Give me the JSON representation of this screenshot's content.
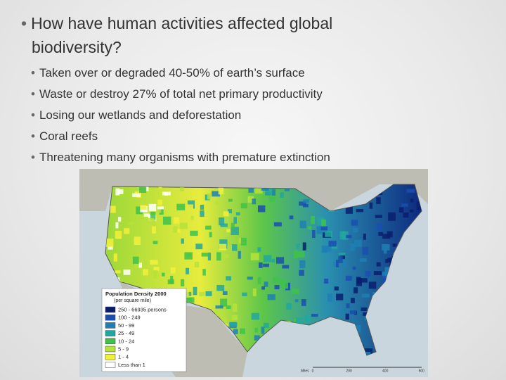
{
  "slide": {
    "title": "How have human activities affected global biodiversity?",
    "bullets": [
      "Taken over or degraded 40-50% of earth’s surface",
      "Waste or destroy 27% of total net primary productivity",
      "Losing our wetlands and deforestation",
      "Coral reefs",
      "Threatening many organisms with premature extinction"
    ]
  },
  "map": {
    "legend": {
      "title": "Population Density 2000",
      "subtitle": "(per square mile)",
      "items": [
        {
          "label": "250 - 66935 persons",
          "color": "#0a1e6e"
        },
        {
          "label": "100 - 249",
          "color": "#1a4fb0"
        },
        {
          "label": "50 - 99",
          "color": "#1f7fb5"
        },
        {
          "label": "25 - 49",
          "color": "#22a7a0"
        },
        {
          "label": "10 - 24",
          "color": "#3fc24a"
        },
        {
          "label": "5 - 9",
          "color": "#b7e23a"
        },
        {
          "label": "1 - 4",
          "color": "#f3f03a"
        },
        {
          "label": "Less than 1",
          "color": "#ffffff"
        }
      ]
    },
    "scale": {
      "unit": "Miles",
      "ticks": [
        "0",
        "200",
        "400",
        "600"
      ]
    }
  }
}
